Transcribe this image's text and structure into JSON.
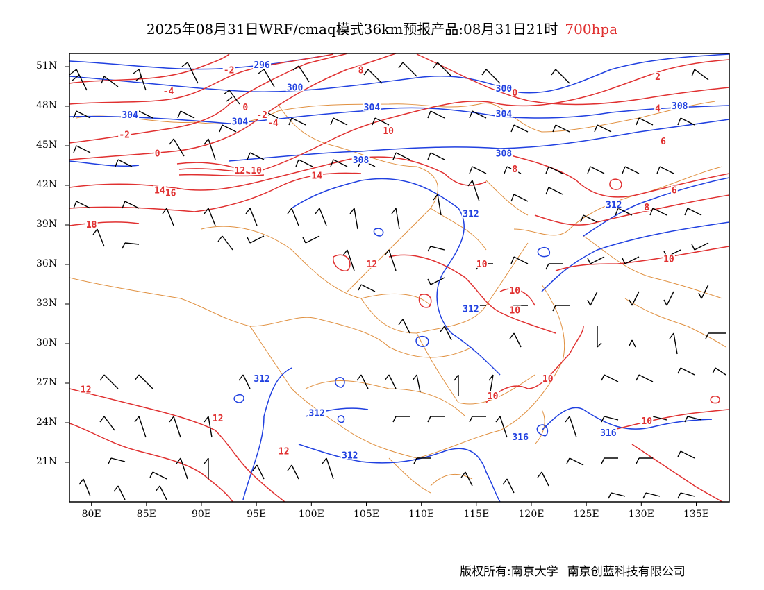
{
  "title": {
    "main": "2025年08月31日WRF/cmaq模式36km预报产品:08月31日21时",
    "level": "700hpa",
    "level_color": "#e03030"
  },
  "colors": {
    "height_contour": "#2040e0",
    "temperature_contour": "#e03030",
    "border": "#e09040",
    "wind_barb": "#000000"
  },
  "axes": {
    "lat_labels": [
      "51N",
      "48N",
      "45N",
      "42N",
      "39N",
      "36N",
      "33N",
      "30N",
      "27N",
      "24N",
      "21N"
    ],
    "lon_labels": [
      "80E",
      "85E",
      "90E",
      "95E",
      "100E",
      "105E",
      "110E",
      "115E",
      "120E",
      "125E",
      "130E",
      "135E"
    ],
    "lon_range": [
      78,
      138
    ],
    "lat_range": [
      18,
      52
    ]
  },
  "height_labels": [
    {
      "text": "296",
      "lon": 95.5,
      "lat": 51.0
    },
    {
      "text": "300",
      "lon": 98.5,
      "lat": 49.3
    },
    {
      "text": "304",
      "lon": 83.5,
      "lat": 47.2
    },
    {
      "text": "304",
      "lon": 93.5,
      "lat": 46.7
    },
    {
      "text": "304",
      "lon": 105.5,
      "lat": 47.8
    },
    {
      "text": "300",
      "lon": 117.5,
      "lat": 49.2
    },
    {
      "text": "304",
      "lon": 117.5,
      "lat": 47.3
    },
    {
      "text": "308",
      "lon": 133.5,
      "lat": 47.9
    },
    {
      "text": "308",
      "lon": 104.5,
      "lat": 43.8
    },
    {
      "text": "308",
      "lon": 117.5,
      "lat": 44.3
    },
    {
      "text": "312",
      "lon": 127.5,
      "lat": 40.4
    },
    {
      "text": "312",
      "lon": 114.5,
      "lat": 39.7
    },
    {
      "text": "312",
      "lon": 114.5,
      "lat": 32.5
    },
    {
      "text": "312",
      "lon": 95.5,
      "lat": 27.2
    },
    {
      "text": "312",
      "lon": 100.5,
      "lat": 24.6
    },
    {
      "text": "312",
      "lon": 103.5,
      "lat": 21.4
    },
    {
      "text": "316",
      "lon": 119.0,
      "lat": 22.8
    },
    {
      "text": "316",
      "lon": 127.0,
      "lat": 23.1
    }
  ],
  "temperature_labels": [
    {
      "text": "-2",
      "lon": 92.5,
      "lat": 50.6
    },
    {
      "text": "-4",
      "lon": 87.0,
      "lat": 49.0
    },
    {
      "text": "0",
      "lon": 94.0,
      "lat": 47.8
    },
    {
      "text": "-2",
      "lon": 95.5,
      "lat": 47.2
    },
    {
      "text": "-4",
      "lon": 96.5,
      "lat": 46.6
    },
    {
      "text": "-2",
      "lon": 83.0,
      "lat": 45.7
    },
    {
      "text": "0",
      "lon": 86.0,
      "lat": 44.3
    },
    {
      "text": "8",
      "lon": 104.5,
      "lat": 50.6
    },
    {
      "text": "0",
      "lon": 118.5,
      "lat": 48.9
    },
    {
      "text": "2",
      "lon": 131.5,
      "lat": 50.1
    },
    {
      "text": "4",
      "lon": 131.5,
      "lat": 47.7
    },
    {
      "text": "10",
      "lon": 107.0,
      "lat": 46.0
    },
    {
      "text": "6",
      "lon": 132.0,
      "lat": 45.2
    },
    {
      "text": "12",
      "lon": 93.5,
      "lat": 43.0
    },
    {
      "text": "10",
      "lon": 95.0,
      "lat": 43.0
    },
    {
      "text": "14",
      "lon": 100.5,
      "lat": 42.6
    },
    {
      "text": "14",
      "lon": 86.2,
      "lat": 41.5
    },
    {
      "text": "16",
      "lon": 87.2,
      "lat": 41.3
    },
    {
      "text": "8",
      "lon": 118.5,
      "lat": 43.1
    },
    {
      "text": "6",
      "lon": 133.0,
      "lat": 41.5
    },
    {
      "text": "8",
      "lon": 130.5,
      "lat": 40.2
    },
    {
      "text": "18",
      "lon": 80.0,
      "lat": 38.9
    },
    {
      "text": "12",
      "lon": 105.5,
      "lat": 35.9
    },
    {
      "text": "10",
      "lon": 115.5,
      "lat": 35.9
    },
    {
      "text": "10",
      "lon": 132.5,
      "lat": 36.3
    },
    {
      "text": "10",
      "lon": 118.5,
      "lat": 33.9
    },
    {
      "text": "10",
      "lon": 118.5,
      "lat": 32.4
    },
    {
      "text": "12",
      "lon": 79.5,
      "lat": 26.4
    },
    {
      "text": "12",
      "lon": 91.5,
      "lat": 24.2
    },
    {
      "text": "12",
      "lon": 97.5,
      "lat": 21.7
    },
    {
      "text": "10",
      "lon": 116.5,
      "lat": 25.9
    },
    {
      "text": "10",
      "lon": 121.5,
      "lat": 27.2
    },
    {
      "text": "10",
      "lon": 130.5,
      "lat": 24.0
    }
  ],
  "copyright": {
    "owner1": "版权所有:南京大学",
    "owner2": "南京创蓝科技有限公司"
  }
}
